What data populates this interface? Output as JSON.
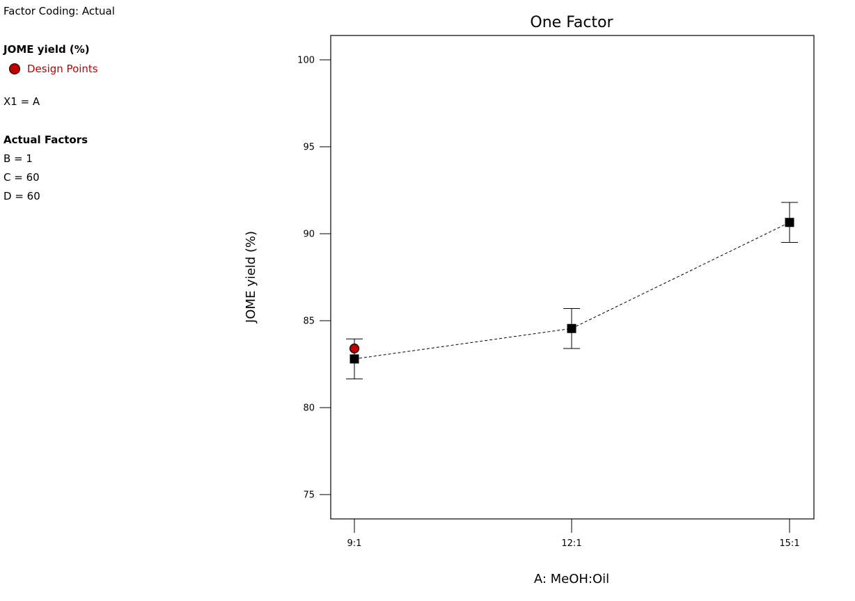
{
  "side_panel": {
    "factor_coding": "Factor Coding: Actual",
    "response_title": "JOME yield (%)",
    "legend_label": "Design Points",
    "x1_assignment": "X1 = A",
    "actual_factors_title": "Actual Factors",
    "actual_factors": [
      "B = 1",
      "C = 60",
      "D = 60"
    ]
  },
  "colors": {
    "design_point": "#c00000",
    "prediction_marker": "#000000",
    "line": "#000000"
  },
  "chart_data": {
    "type": "line",
    "title": "One Factor",
    "xlabel": "A: MeOH:Oil",
    "ylabel": "JOME yield (%)",
    "categories": [
      "9:1",
      "12:1",
      "15:1"
    ],
    "ylim": [
      73.6,
      101.4
    ],
    "yticks": [
      75,
      80,
      85,
      90,
      95,
      100
    ],
    "series": [
      {
        "values": [
          82.8,
          84.55,
          90.65
        ],
        "lower": [
          81.65,
          83.4,
          89.5
        ],
        "upper": [
          83.95,
          85.7,
          91.8
        ]
      }
    ],
    "design_points": [
      {
        "category": "9:1",
        "value": 83.4
      }
    ],
    "grid": false,
    "line_style": "dashed"
  }
}
